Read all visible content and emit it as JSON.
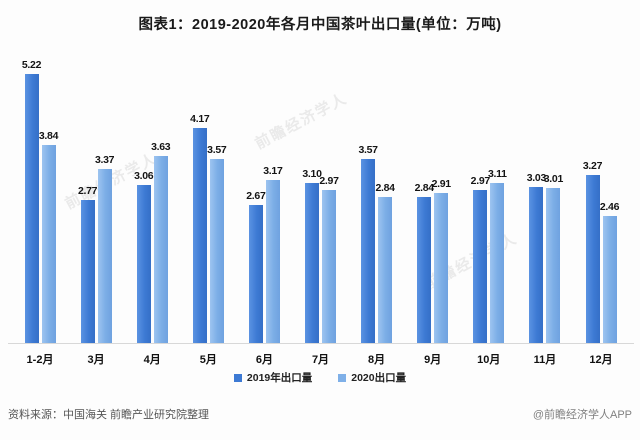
{
  "title": "图表1：2019-2020年各月中国茶叶出口量(单位：万吨)",
  "chart_data": {
    "type": "bar",
    "categories": [
      "1-2月",
      "3月",
      "4月",
      "5月",
      "6月",
      "7月",
      "8月",
      "9月",
      "10月",
      "11月",
      "12月"
    ],
    "series": [
      {
        "name": "2019年出口量",
        "color": "#3d7ad4",
        "values": [
          5.22,
          2.77,
          3.06,
          4.17,
          2.67,
          3.1,
          3.57,
          2.84,
          2.97,
          3.03,
          3.27
        ]
      },
      {
        "name": "2020出口量",
        "color": "#7fb0e8",
        "values": [
          3.84,
          3.37,
          3.63,
          3.57,
          3.17,
          2.97,
          2.84,
          2.91,
          3.11,
          3.01,
          2.46
        ]
      }
    ],
    "title": "图表1：2019-2020年各月中国茶叶出口量(单位：万吨)",
    "xlabel": "",
    "ylabel": "",
    "unit": "万吨",
    "ylim": [
      0,
      5.5
    ],
    "grid": false,
    "value_labels": true,
    "legend_position": "bottom"
  },
  "footer": {
    "source": "资料来源：中国海关 前瞻产业研究院整理",
    "brand": "@前瞻经济学人APP"
  },
  "watermark": "前瞻经济学人"
}
